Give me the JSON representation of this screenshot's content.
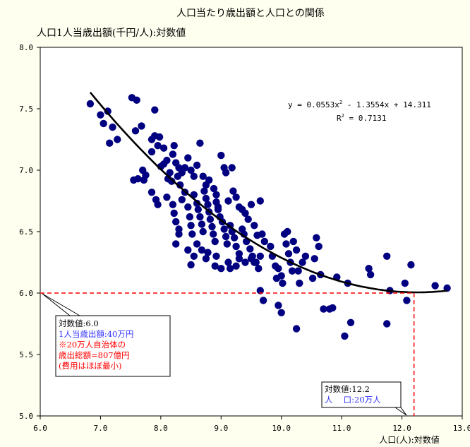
{
  "chart_data": {
    "type": "scatter",
    "title": "人口当たり歳出額と人口との関係",
    "ylabel": "人口1人当歳出額(千円/人):対数値",
    "xlabel": "人口(人):対数値",
    "xlim": [
      6.0,
      13.0
    ],
    "ylim": [
      5.0,
      8.0
    ],
    "x_ticks": [
      "6.0",
      "7.0",
      "8.0",
      "9.0",
      "10.0",
      "11.0",
      "12.0",
      "13.0"
    ],
    "y_ticks": [
      "5.0",
      "5.5",
      "6.0",
      "6.5",
      "7.0",
      "7.5",
      "8.0"
    ],
    "marker_color": "#000080",
    "trendline": {
      "coefficients": [
        0.0553,
        -1.3554,
        14.311
      ],
      "x_range": [
        6.83,
        12.75
      ],
      "equation_prefix": "y = 0.0553x",
      "equation_mid": " - 1.3554x + 14.311",
      "r2_prefix": "R",
      "r2_value": " = 0.7131",
      "sup": "2"
    },
    "guide_lines": {
      "x": 12.2,
      "y": 6.0,
      "color": "#ff0000"
    },
    "annotations": [
      {
        "lines": [
          {
            "text": "対数値:6.0",
            "color": "#000000"
          },
          {
            "text": "1人当歳出額:40万円",
            "color": "#3333ff"
          },
          {
            "text": "※20万人自治体の",
            "color": "#ff0000"
          },
          {
            "text": "歳出総額=807億円",
            "color": "#ff0000"
          },
          {
            "text": "(費用はほぼ最小)",
            "color": "#ff0000"
          }
        ]
      },
      {
        "lines": [
          {
            "text": "対数値:12.2",
            "color": "#000000"
          },
          {
            "text": "人　 口:20万人",
            "color": "#3333ff"
          }
        ]
      }
    ],
    "points": [
      [
        6.83,
        7.54
      ],
      [
        7.0,
        7.45
      ],
      [
        7.05,
        7.38
      ],
      [
        7.12,
        7.48
      ],
      [
        7.15,
        7.22
      ],
      [
        7.2,
        7.35
      ],
      [
        7.28,
        7.25
      ],
      [
        7.52,
        7.59
      ],
      [
        7.6,
        7.57
      ],
      [
        7.58,
        7.32
      ],
      [
        7.68,
        7.36
      ],
      [
        7.55,
        6.92
      ],
      [
        7.62,
        6.93
      ],
      [
        7.7,
        7.0
      ],
      [
        7.75,
        6.96
      ],
      [
        7.72,
        6.92
      ],
      [
        7.85,
        7.25
      ],
      [
        7.9,
        7.28
      ],
      [
        7.85,
        7.15
      ],
      [
        7.95,
        7.2
      ],
      [
        7.9,
        7.49
      ],
      [
        7.98,
        7.27
      ],
      [
        8.05,
        7.18
      ],
      [
        8.0,
        7.03
      ],
      [
        8.05,
        7.05
      ],
      [
        8.1,
        7.08
      ],
      [
        8.15,
        6.98
      ],
      [
        8.2,
        7.13
      ],
      [
        8.22,
        7.2
      ],
      [
        8.12,
        6.93
      ],
      [
        8.18,
        6.91
      ],
      [
        8.25,
        7.06
      ],
      [
        8.3,
        7.02
      ],
      [
        8.28,
        6.95
      ],
      [
        8.32,
        6.88
      ],
      [
        8.35,
        6.98
      ],
      [
        8.4,
        7.02
      ],
      [
        8.45,
        7.1
      ],
      [
        8.5,
        7.0
      ],
      [
        8.55,
        6.95
      ],
      [
        8.6,
        7.04
      ],
      [
        8.65,
        7.22
      ],
      [
        8.7,
        6.95
      ],
      [
        8.75,
        6.88
      ],
      [
        8.8,
        6.92
      ],
      [
        8.88,
        6.85
      ],
      [
        8.92,
        6.8
      ],
      [
        8.95,
        6.7
      ],
      [
        9.0,
        7.12
      ],
      [
        9.05,
        7.02
      ],
      [
        9.08,
        6.98
      ],
      [
        9.12,
        6.75
      ],
      [
        9.18,
        7.02
      ],
      [
        9.2,
        6.83
      ],
      [
        9.25,
        6.78
      ],
      [
        9.3,
        6.7
      ],
      [
        9.35,
        6.68
      ],
      [
        9.4,
        6.65
      ],
      [
        9.45,
        6.6
      ],
      [
        9.5,
        6.72
      ],
      [
        9.55,
        6.55
      ],
      [
        9.6,
        6.47
      ],
      [
        9.65,
        6.75
      ],
      [
        7.85,
        6.82
      ],
      [
        7.95,
        6.72
      ],
      [
        7.92,
        6.76
      ],
      [
        8.1,
        6.78
      ],
      [
        8.2,
        6.72
      ],
      [
        8.22,
        6.65
      ],
      [
        8.25,
        6.58
      ],
      [
        8.3,
        6.52
      ],
      [
        8.35,
        6.76
      ],
      [
        8.4,
        6.82
      ],
      [
        8.45,
        6.7
      ],
      [
        8.48,
        6.62
      ],
      [
        8.5,
        6.55
      ],
      [
        8.52,
        6.48
      ],
      [
        8.55,
        6.8
      ],
      [
        8.6,
        6.73
      ],
      [
        8.62,
        6.68
      ],
      [
        8.65,
        6.62
      ],
      [
        8.68,
        6.56
      ],
      [
        8.7,
        6.5
      ],
      [
        8.72,
        6.83
      ],
      [
        8.75,
        6.77
      ],
      [
        8.78,
        6.72
      ],
      [
        8.8,
        6.66
      ],
      [
        8.82,
        6.6
      ],
      [
        8.85,
        6.54
      ],
      [
        8.87,
        6.48
      ],
      [
        8.9,
        6.42
      ],
      [
        8.92,
        6.74
      ],
      [
        8.95,
        6.68
      ],
      [
        8.98,
        6.62
      ],
      [
        9.02,
        6.58
      ],
      [
        9.05,
        6.52
      ],
      [
        9.08,
        6.46
      ],
      [
        9.1,
        6.4
      ],
      [
        9.15,
        6.55
      ],
      [
        9.18,
        6.5
      ],
      [
        9.22,
        6.45
      ],
      [
        9.25,
        6.38
      ],
      [
        9.3,
        6.32
      ],
      [
        9.35,
        6.52
      ],
      [
        9.38,
        6.48
      ],
      [
        9.42,
        6.42
      ],
      [
        9.48,
        6.36
      ],
      [
        9.52,
        6.3
      ],
      [
        9.58,
        6.25
      ],
      [
        9.62,
        6.2
      ],
      [
        9.68,
        6.48
      ],
      [
        9.72,
        6.42
      ],
      [
        8.25,
        6.4
      ],
      [
        8.3,
        6.48
      ],
      [
        8.45,
        6.35
      ],
      [
        8.55,
        6.3
      ],
      [
        8.5,
        6.23
      ],
      [
        8.6,
        6.4
      ],
      [
        8.68,
        6.35
      ],
      [
        8.75,
        6.28
      ],
      [
        8.78,
        6.33
      ],
      [
        8.92,
        6.3
      ],
      [
        8.9,
        6.22
      ],
      [
        9.0,
        6.2
      ],
      [
        9.12,
        6.25
      ],
      [
        9.15,
        6.2
      ],
      [
        9.25,
        6.22
      ],
      [
        9.3,
        6.28
      ],
      [
        9.4,
        6.25
      ],
      [
        9.5,
        6.28
      ],
      [
        9.55,
        6.25
      ],
      [
        9.65,
        6.3
      ],
      [
        9.82,
        6.38
      ],
      [
        9.85,
        6.3
      ],
      [
        9.9,
        6.22
      ],
      [
        9.92,
        6.12
      ],
      [
        9.95,
        6.2
      ],
      [
        10.0,
        6.14
      ],
      [
        10.02,
        6.08
      ],
      [
        10.05,
        6.48
      ],
      [
        10.08,
        6.4
      ],
      [
        10.1,
        6.5
      ],
      [
        10.12,
        6.32
      ],
      [
        10.15,
        6.25
      ],
      [
        10.18,
        6.18
      ],
      [
        10.2,
        6.42
      ],
      [
        10.25,
        6.35
      ],
      [
        10.28,
        6.18
      ],
      [
        10.3,
        6.08
      ],
      [
        10.35,
        6.25
      ],
      [
        10.4,
        6.3
      ],
      [
        10.52,
        6.12
      ],
      [
        10.55,
        6.28
      ],
      [
        10.58,
        6.45
      ],
      [
        10.65,
        6.15
      ],
      [
        10.62,
        6.38
      ],
      [
        10.92,
        6.13
      ],
      [
        11.1,
        6.08
      ],
      [
        11.45,
        6.2
      ],
      [
        11.48,
        6.15
      ],
      [
        11.8,
        6.02
      ],
      [
        12.05,
        6.08
      ],
      [
        12.15,
        6.23
      ],
      [
        12.55,
        6.06
      ],
      [
        12.75,
        6.04
      ],
      [
        11.75,
        6.3
      ],
      [
        9.65,
        6.02
      ],
      [
        9.7,
        5.94
      ],
      [
        9.95,
        5.9
      ],
      [
        10.0,
        5.84
      ],
      [
        10.25,
        5.71
      ],
      [
        10.7,
        5.87
      ],
      [
        10.8,
        5.87
      ],
      [
        10.85,
        5.88
      ],
      [
        11.05,
        5.65
      ],
      [
        11.15,
        5.76
      ],
      [
        11.75,
        5.75
      ],
      [
        12.08,
        5.94
      ]
    ]
  }
}
